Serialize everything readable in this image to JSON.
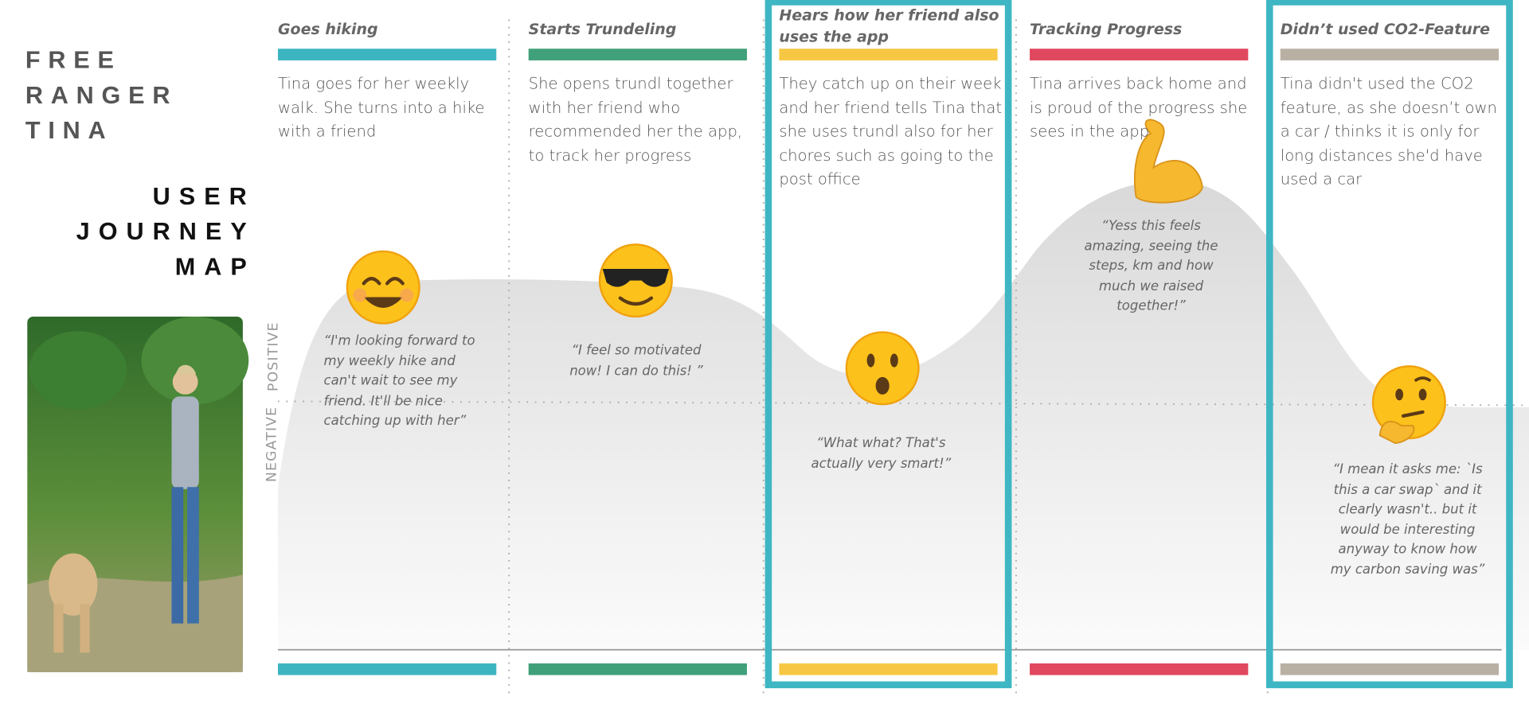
{
  "title_lines": [
    "FREE",
    "RANGER",
    "TINA"
  ],
  "subtitle_lines": [
    "USER",
    "JOURNEY",
    "MAP"
  ],
  "axis": {
    "positive": "POSITIVE",
    "negative": "NEGATIVE"
  },
  "stages": [
    {
      "title": "Goes hiking",
      "color": "#3db5c1",
      "highlighted": false,
      "description": "Tina goes for her weekly walk. She turns into a hike with a friend",
      "quote": "“I'm looking forward to my weekly hike and can't wait to see my friend. It'll be nice catching up with her”"
    },
    {
      "title": "Starts Trundeling",
      "color": "#40a07a",
      "highlighted": false,
      "description": "She opens trundl together with her friend who recommended her the app, to track her progress",
      "quote": "“I feel so motivated now! I can do this! ”"
    },
    {
      "title": "Hears how her friend also uses the app",
      "color": "#f7c744",
      "highlighted": true,
      "description": "They catch up on their week and her friend tells Tina that she uses trundl also for her chores such as going to the post office",
      "quote": "“What what? That's actually very smart!”"
    },
    {
      "title": "Tracking Progress",
      "color": "#e0485f",
      "highlighted": false,
      "description": "Tina arrives back home and is proud of the progress she sees in the app",
      "quote": "“Yess this feels amazing, seeing the steps, km and how much we raised together!”"
    },
    {
      "title": "Didn’t used CO2-Feature",
      "color": "#b9b0a4",
      "highlighted": true,
      "description": "Tina didn't used the CO2 feature, as she doesn’t own a car / thinks it is only for long distances she'd have used a car",
      "quote": "“I mean it asks me: `Is this a car swap` and it clearly wasn't.. but it would be interesting anyway to know how my carbon saving was”"
    }
  ]
}
